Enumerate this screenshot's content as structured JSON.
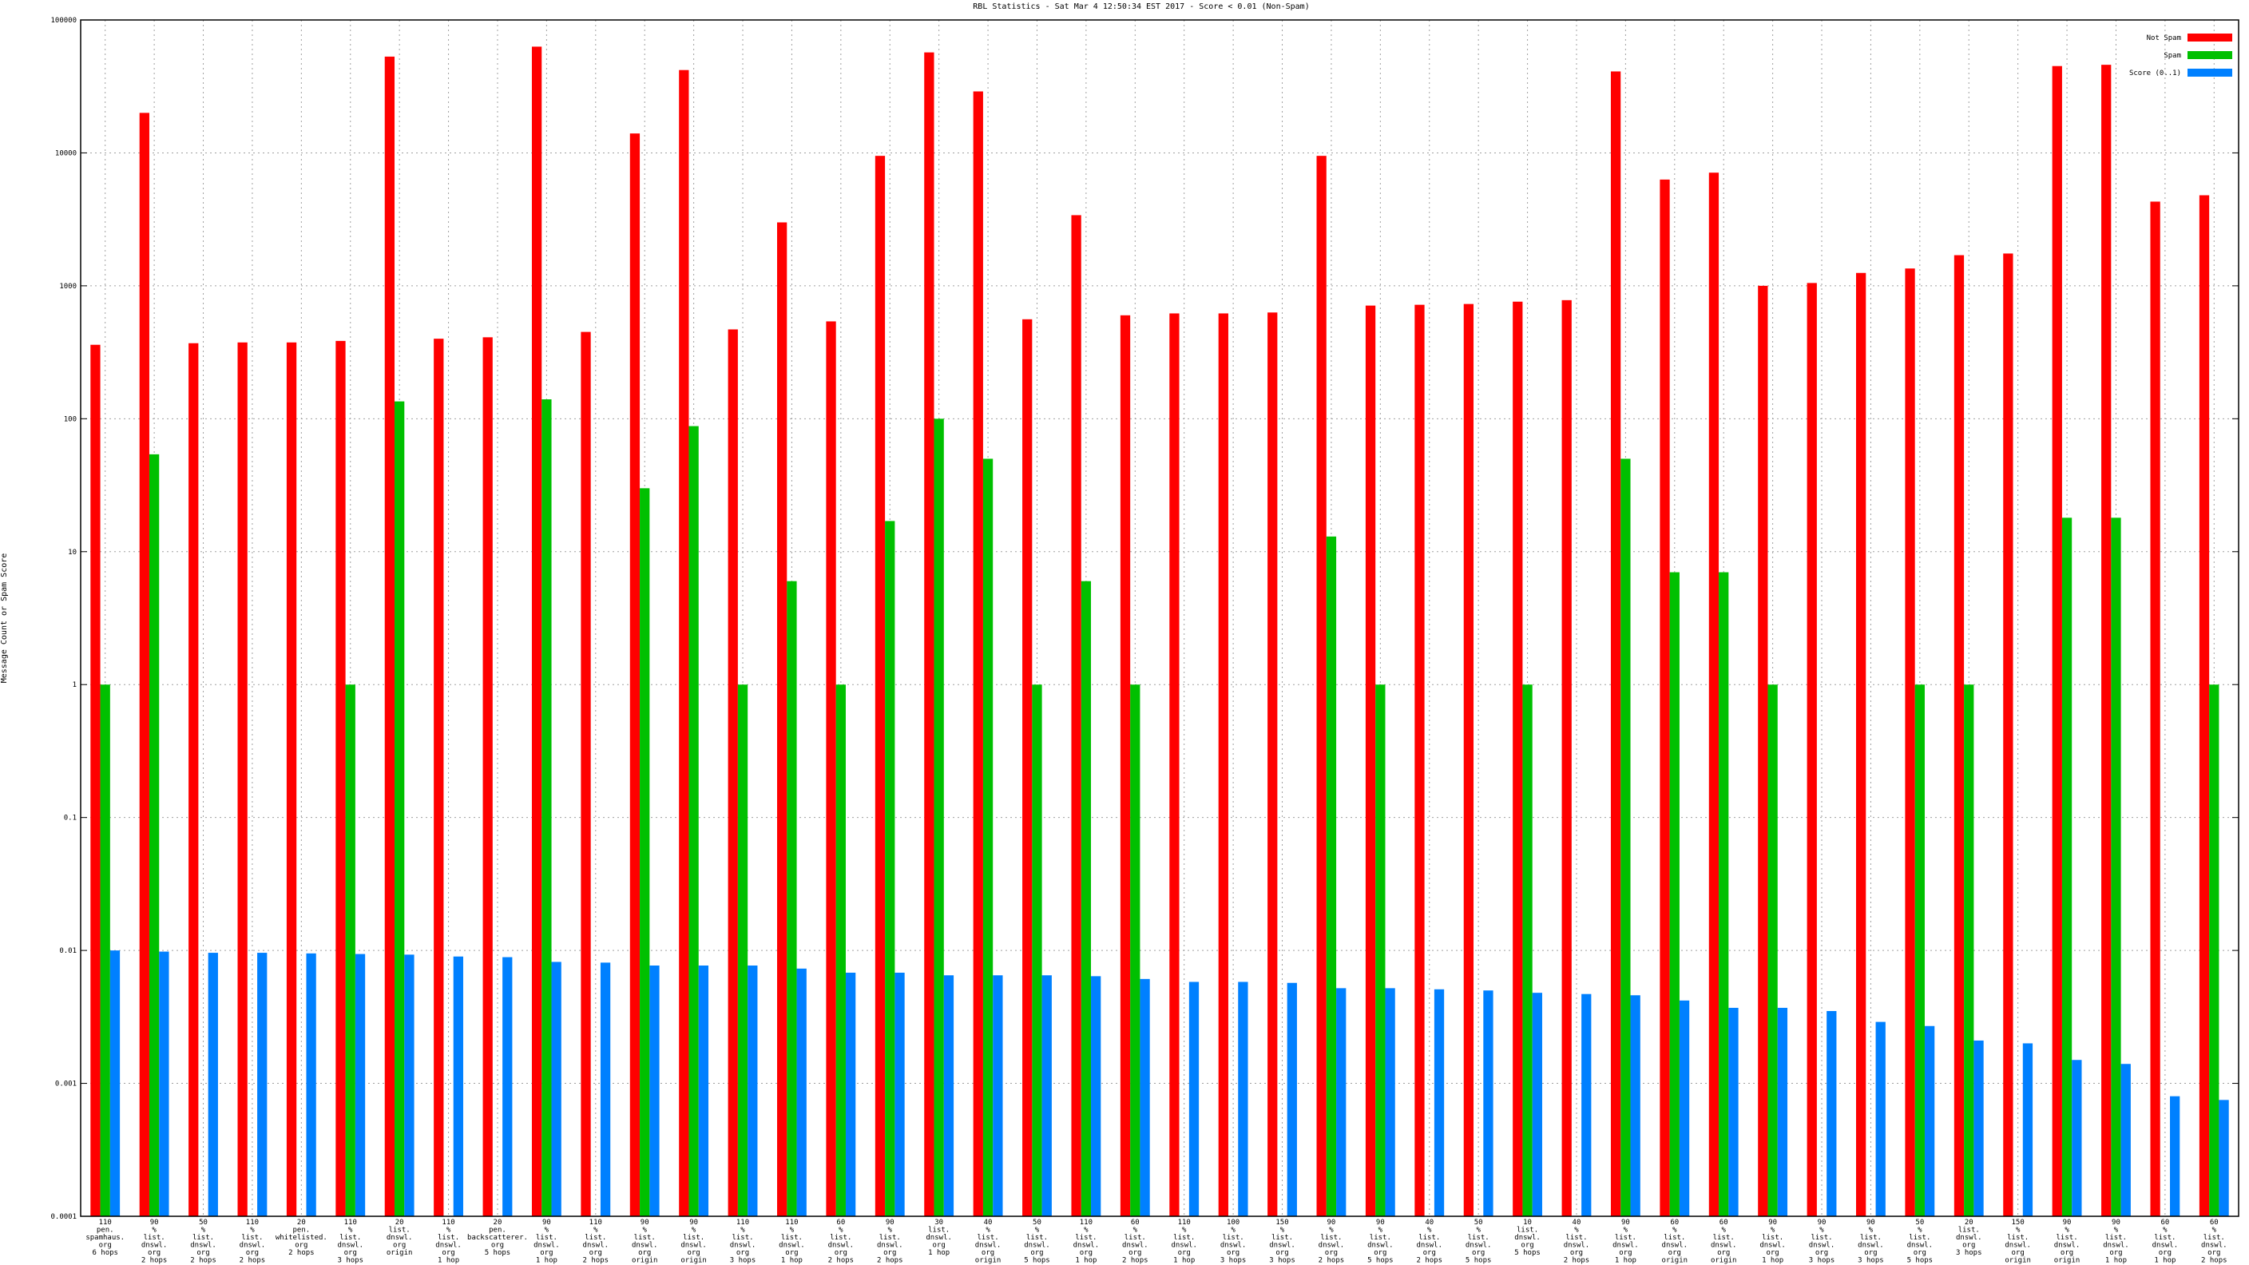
{
  "chart_data": {
    "type": "bar",
    "title": "RBL Statistics - Sat Mar  4 12:50:34 EST 2017 - Score < 0.01 (Non-Spam)",
    "y_label": "Message Count or Spam Score",
    "log_scale": true,
    "grid": true,
    "legend": "top-right",
    "ylim": [
      0.0001,
      100000
    ],
    "yticks": [
      0.0001,
      0.001,
      0.01,
      0.1,
      1,
      10,
      100,
      1000,
      10000,
      100000
    ],
    "categories": [
      [
        "110",
        "pen.",
        "spamhaus.",
        "org",
        "6 hops"
      ],
      [
        "90",
        "%",
        "list.",
        "dnswl.",
        "org",
        "2 hops"
      ],
      [
        "50",
        "%",
        "list.",
        "dnswl.",
        "org",
        "2 hops"
      ],
      [
        "110",
        "%",
        "list.",
        "dnswl.",
        "org",
        "2 hops"
      ],
      [
        "20",
        "pen.",
        "whitelisted.",
        "org",
        "2 hops"
      ],
      [
        "110",
        "%",
        "list.",
        "dnswl.",
        "org",
        "3 hops"
      ],
      [
        "20",
        "list.",
        "dnswl.",
        "org",
        "origin"
      ],
      [
        "110",
        "%",
        "list.",
        "dnswl.",
        "org",
        "1 hop"
      ],
      [
        "20",
        "pen.",
        "backscatterer.",
        "org",
        "5 hops"
      ],
      [
        "90",
        "%",
        "list.",
        "dnswl.",
        "org",
        "1 hop"
      ],
      [
        "110",
        "%",
        "list.",
        "dnswl.",
        "org",
        "2 hops"
      ],
      [
        "90",
        "%",
        "list.",
        "dnswl.",
        "org",
        "origin"
      ],
      [
        "90",
        "%",
        "list.",
        "dnswl.",
        "org",
        "origin"
      ],
      [
        "110",
        "%",
        "list.",
        "dnswl.",
        "org",
        "3 hops"
      ],
      [
        "110",
        "%",
        "list.",
        "dnswl.",
        "org",
        "1 hop"
      ],
      [
        "60",
        "%",
        "list.",
        "dnswl.",
        "org",
        "2 hops"
      ],
      [
        "90",
        "%",
        "list.",
        "dnswl.",
        "org",
        "2 hops"
      ],
      [
        "30",
        "list.",
        "dnswl.",
        "org",
        "1 hop"
      ],
      [
        "40",
        "%",
        "list.",
        "dnswl.",
        "org",
        "origin"
      ],
      [
        "50",
        "%",
        "list.",
        "dnswl.",
        "org",
        "5 hops"
      ],
      [
        "110",
        "%",
        "list.",
        "dnswl.",
        "org",
        "1 hop"
      ],
      [
        "60",
        "%",
        "list.",
        "dnswl.",
        "org",
        "2 hops"
      ],
      [
        "110",
        "%",
        "list.",
        "dnswl.",
        "org",
        "1 hop"
      ],
      [
        "100",
        "%",
        "list.",
        "dnswl.",
        "org",
        "3 hops"
      ],
      [
        "150",
        "%",
        "list.",
        "dnswl.",
        "org",
        "3 hops"
      ],
      [
        "90",
        "%",
        "list.",
        "dnswl.",
        "org",
        "2 hops"
      ],
      [
        "90",
        "%",
        "list.",
        "dnswl.",
        "org",
        "5 hops"
      ],
      [
        "40",
        "%",
        "list.",
        "dnswl.",
        "org",
        "2 hops"
      ],
      [
        "50",
        "%",
        "list.",
        "dnswl.",
        "org",
        "5 hops"
      ],
      [
        "10",
        "list.",
        "dnswl.",
        "org",
        "5 hops"
      ],
      [
        "40",
        "%",
        "list.",
        "dnswl.",
        "org",
        "2 hops"
      ],
      [
        "90",
        "%",
        "list.",
        "dnswl.",
        "org",
        "1 hop"
      ],
      [
        "60",
        "%",
        "list.",
        "dnswl.",
        "org",
        "origin"
      ],
      [
        "60",
        "%",
        "list.",
        "dnswl.",
        "org",
        "origin"
      ],
      [
        "90",
        "%",
        "list.",
        "dnswl.",
        "org",
        "1 hop"
      ],
      [
        "90",
        "%",
        "list.",
        "dnswl.",
        "org",
        "3 hops"
      ],
      [
        "90",
        "%",
        "list.",
        "dnswl.",
        "org",
        "3 hops"
      ],
      [
        "50",
        "%",
        "list.",
        "dnswl.",
        "org",
        "5 hops"
      ],
      [
        "20",
        "list.",
        "dnswl.",
        "org",
        "3 hops"
      ],
      [
        "150",
        "%",
        "list.",
        "dnswl.",
        "org",
        "origin"
      ],
      [
        "90",
        "%",
        "list.",
        "dnswl.",
        "org",
        "origin"
      ],
      [
        "90",
        "%",
        "list.",
        "dnswl.",
        "org",
        "1 hop"
      ],
      [
        "60",
        "%",
        "list.",
        "dnswl.",
        "org",
        "1 hop"
      ],
      [
        "60",
        "%",
        "list.",
        "dnswl.",
        "org",
        "2 hops"
      ]
    ],
    "series": [
      {
        "name": "Not Spam",
        "color": "#ff0000",
        "values": [
          360,
          20000,
          370,
          375,
          375,
          385,
          53000,
          400,
          410,
          63000,
          450,
          14000,
          42000,
          470,
          3000,
          540,
          9500,
          57000,
          29000,
          560,
          3400,
          600,
          620,
          620,
          630,
          9500,
          710,
          720,
          730,
          760,
          780,
          41000,
          6300,
          7100,
          1000,
          1050,
          1250,
          1350,
          1700,
          1750,
          45000,
          46000,
          4300,
          4800
        ]
      },
      {
        "name": "Spam",
        "color": "#00c000",
        "values": [
          1,
          54,
          null,
          null,
          null,
          1,
          135,
          null,
          null,
          140,
          null,
          30,
          88,
          1,
          6,
          1,
          17,
          100,
          50,
          1,
          6,
          1,
          null,
          null,
          null,
          13,
          1,
          null,
          null,
          1,
          null,
          50,
          7,
          7,
          1,
          null,
          null,
          1,
          1,
          null,
          18,
          18,
          null,
          1
        ]
      },
      {
        "name": "Score (0..1)",
        "color": "#0080ff",
        "values": [
          0.01,
          0.0098,
          0.0096,
          0.0096,
          0.0095,
          0.0094,
          0.0093,
          0.009,
          0.0089,
          0.0082,
          0.0081,
          0.0077,
          0.0077,
          0.0077,
          0.0073,
          0.0068,
          0.0068,
          0.0065,
          0.0065,
          0.0065,
          0.0064,
          0.0061,
          0.0058,
          0.0058,
          0.0057,
          0.0052,
          0.0052,
          0.0051,
          0.005,
          0.0048,
          0.0047,
          0.0046,
          0.0042,
          0.0037,
          0.0037,
          0.0035,
          0.0029,
          0.0027,
          0.0021,
          0.002,
          0.0015,
          0.0014,
          0.0008,
          0.00075
        ]
      }
    ]
  }
}
